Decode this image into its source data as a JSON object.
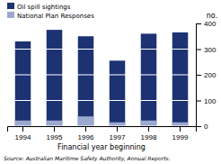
{
  "chart_data": {
    "type": "bar",
    "xlabel": "Financial year beginning",
    "ylabel": "no.",
    "categories": [
      "1994",
      "1995",
      "1996",
      "1997",
      "1998",
      "1999"
    ],
    "series": [
      {
        "name": "Oil spill sightings",
        "color": "#1c3272",
        "values": [
          330,
          375,
          350,
          255,
          360,
          365
        ]
      },
      {
        "name": "National Plan Responses",
        "color": "#9ba8d0",
        "values": [
          22,
          22,
          38,
          15,
          22,
          15
        ]
      }
    ],
    "ylim": [
      0,
      400
    ],
    "yticks": [
      0,
      100,
      200,
      300,
      400
    ],
    "grid": true,
    "legend": "upper left",
    "annotations": [
      "Source: Australian Maritime Safety Authority, Annual Reports."
    ]
  }
}
